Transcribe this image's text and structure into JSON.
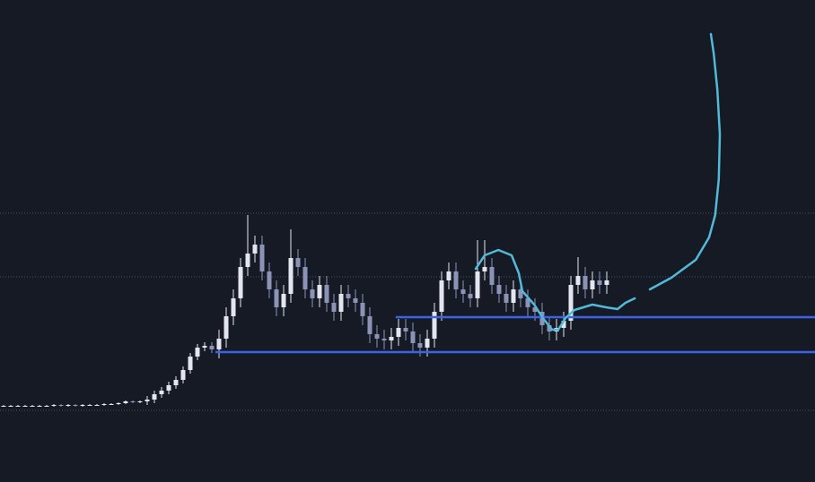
{
  "chart_data": {
    "type": "candlestick",
    "xlim": [
      -0.5,
      113
    ],
    "ylim": [
      0,
      538
    ],
    "gridlines": [
      300,
      229,
      80
    ],
    "up_color": "#e3e6ee",
    "down_color": "#8b94b6",
    "open": [
      85,
      85,
      85,
      85,
      85,
      85,
      85,
      85,
      86,
      85,
      86,
      85,
      86,
      86,
      86,
      87,
      87,
      88,
      90,
      89,
      90,
      92,
      98,
      102,
      108,
      114,
      125,
      140,
      150,
      152,
      148,
      160,
      185,
      205,
      240,
      255,
      265,
      235,
      215,
      195,
      210,
      250,
      240,
      215,
      205,
      220,
      200,
      190,
      210,
      205,
      200,
      185,
      165,
      160,
      158,
      162,
      172,
      168,
      155,
      150,
      160,
      190,
      225,
      235,
      215,
      210,
      205,
      235,
      240,
      220,
      210,
      200,
      215,
      205,
      195,
      190,
      175,
      168,
      172,
      180,
      220,
      230,
      215,
      225,
      220
    ],
    "high": [
      86,
      86,
      86,
      86,
      86,
      86,
      86,
      87,
      87,
      87,
      87,
      87,
      87,
      87,
      88,
      88,
      89,
      91,
      91,
      91,
      96,
      102,
      106,
      112,
      118,
      129,
      144,
      154,
      156,
      156,
      170,
      195,
      215,
      250,
      298,
      275,
      275,
      245,
      225,
      220,
      282,
      260,
      250,
      225,
      230,
      230,
      210,
      220,
      220,
      215,
      210,
      195,
      175,
      170,
      172,
      182,
      182,
      178,
      165,
      170,
      200,
      235,
      245,
      245,
      225,
      220,
      270,
      270,
      250,
      230,
      220,
      225,
      225,
      215,
      205,
      200,
      185,
      182,
      190,
      230,
      251,
      240,
      235,
      235,
      235
    ],
    "low": [
      84,
      84,
      84,
      84,
      84,
      84,
      84,
      84,
      84,
      84,
      84,
      84,
      85,
      85,
      85,
      86,
      86,
      87,
      88,
      88,
      86,
      88,
      94,
      98,
      104,
      110,
      121,
      136,
      146,
      144,
      138,
      150,
      175,
      195,
      230,
      245,
      225,
      205,
      185,
      185,
      200,
      230,
      205,
      195,
      195,
      190,
      180,
      180,
      195,
      190,
      175,
      155,
      150,
      148,
      148,
      152,
      158,
      145,
      140,
      140,
      150,
      180,
      215,
      205,
      200,
      195,
      195,
      225,
      210,
      200,
      190,
      190,
      195,
      185,
      180,
      165,
      158,
      158,
      162,
      170,
      210,
      205,
      205,
      210,
      210
    ],
    "close": [
      85,
      85,
      85,
      85,
      85,
      85,
      85,
      86,
      85,
      86,
      85,
      86,
      86,
      86,
      87,
      87,
      88,
      90,
      89,
      90,
      92,
      98,
      102,
      108,
      114,
      125,
      140,
      150,
      152,
      148,
      160,
      185,
      205,
      240,
      255,
      265,
      235,
      215,
      195,
      210,
      250,
      240,
      215,
      205,
      220,
      200,
      190,
      210,
      205,
      200,
      185,
      165,
      160,
      158,
      162,
      172,
      168,
      155,
      150,
      160,
      190,
      225,
      235,
      215,
      210,
      205,
      235,
      240,
      220,
      210,
      200,
      215,
      205,
      195,
      190,
      175,
      168,
      172,
      180,
      220,
      230,
      215,
      225,
      220,
      225
    ],
    "levels": [
      {
        "value": 184,
        "start_x": 54.6,
        "color": "#3b63e6"
      },
      {
        "value": 145,
        "start_x": 29.5,
        "color": "#3b63e6"
      }
    ],
    "drawing": {
      "color": "#52b9d8",
      "x": [
        65.75,
        67,
        68.9,
        70.75,
        71.75,
        72.25,
        73.9,
        75.1,
        76.4,
        77.25,
        78.25,
        79.5,
        82,
        83.9,
        85.5,
        86.6,
        87.9,
        null,
        90,
        93,
        96.4,
        98.25,
        99.1,
        99.6,
        99.75,
        99.4,
        98.9,
        98.5
      ],
      "y": [
        238,
        253,
        259,
        253,
        233,
        213,
        198,
        183,
        170,
        170,
        183,
        192,
        198,
        195,
        193,
        200,
        205,
        null,
        215,
        228,
        248,
        273,
        298,
        338,
        388,
        438,
        478,
        500
      ]
    }
  }
}
